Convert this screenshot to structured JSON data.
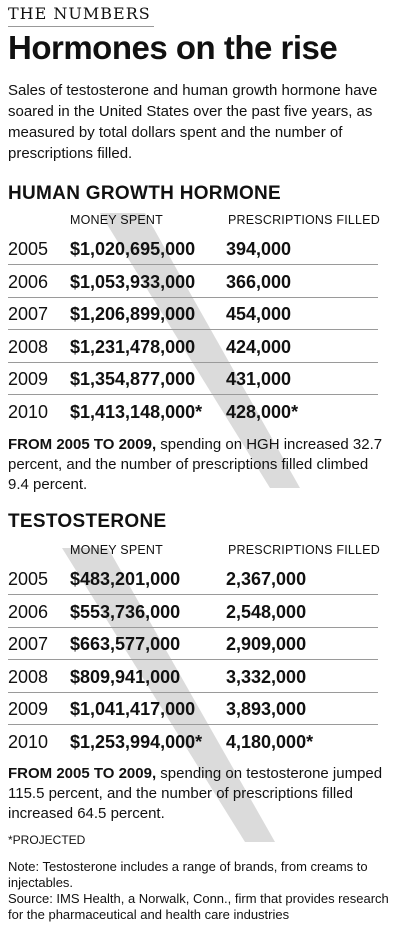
{
  "header": {
    "kicker": "THE NUMBERS",
    "title": "Hormones on the rise",
    "intro": "Sales of testosterone and human growth hormone have soared in the United States over the past five years, as measured by total dollars spent and the number of prescriptions filled."
  },
  "chart_data": [
    {
      "type": "table",
      "title": "HUMAN GROWTH HORMONE",
      "columns": [
        "MONEY SPENT",
        "PRESCRIPTIONS FILLED"
      ],
      "rows": [
        {
          "year": "2005",
          "money": "$1,020,695,000",
          "prescriptions": "394,000"
        },
        {
          "year": "2006",
          "money": "$1,053,933,000",
          "prescriptions": "366,000"
        },
        {
          "year": "2007",
          "money": "$1,206,899,000",
          "prescriptions": "454,000"
        },
        {
          "year": "2008",
          "money": "$1,231,478,000",
          "prescriptions": "424,000"
        },
        {
          "year": "2009",
          "money": "$1,354,877,000",
          "prescriptions": "431,000"
        },
        {
          "year": "2010",
          "money": "$1,413,148,000*",
          "prescriptions": "428,000*"
        }
      ],
      "summary_lead": "FROM 2005 TO 2009,",
      "summary_text": "spending on HGH increased 32.7 percent, and the number of prescriptions filled climbed 9.4 percent."
    },
    {
      "type": "table",
      "title": "TESTOSTERONE",
      "columns": [
        "MONEY SPENT",
        "PRESCRIPTIONS FILLED"
      ],
      "rows": [
        {
          "year": "2005",
          "money": "$483,201,000",
          "prescriptions": "2,367,000"
        },
        {
          "year": "2006",
          "money": "$553,736,000",
          "prescriptions": "2,548,000"
        },
        {
          "year": "2007",
          "money": "$663,577,000",
          "prescriptions": "2,909,000"
        },
        {
          "year": "2008",
          "money": "$809,941,000",
          "prescriptions": "3,332,000"
        },
        {
          "year": "2009",
          "money": "$1,041,417,000",
          "prescriptions": "3,893,000"
        },
        {
          "year": "2010",
          "money": "$1,253,994,000*",
          "prescriptions": "4,180,000*"
        }
      ],
      "summary_lead": "FROM 2005 TO 2009,",
      "summary_text": "spending on testosterone jumped 115.5 percent, and the number of prescriptions filled increased 64.5 percent."
    }
  ],
  "footer": {
    "projected": "*PROJECTED",
    "note": "Note: Testosterone includes a range of brands, from creams to injectables.",
    "source": "Source: IMS Health, a Norwalk, Conn., firm that provides research for the pharmaceutical and health care industries"
  }
}
